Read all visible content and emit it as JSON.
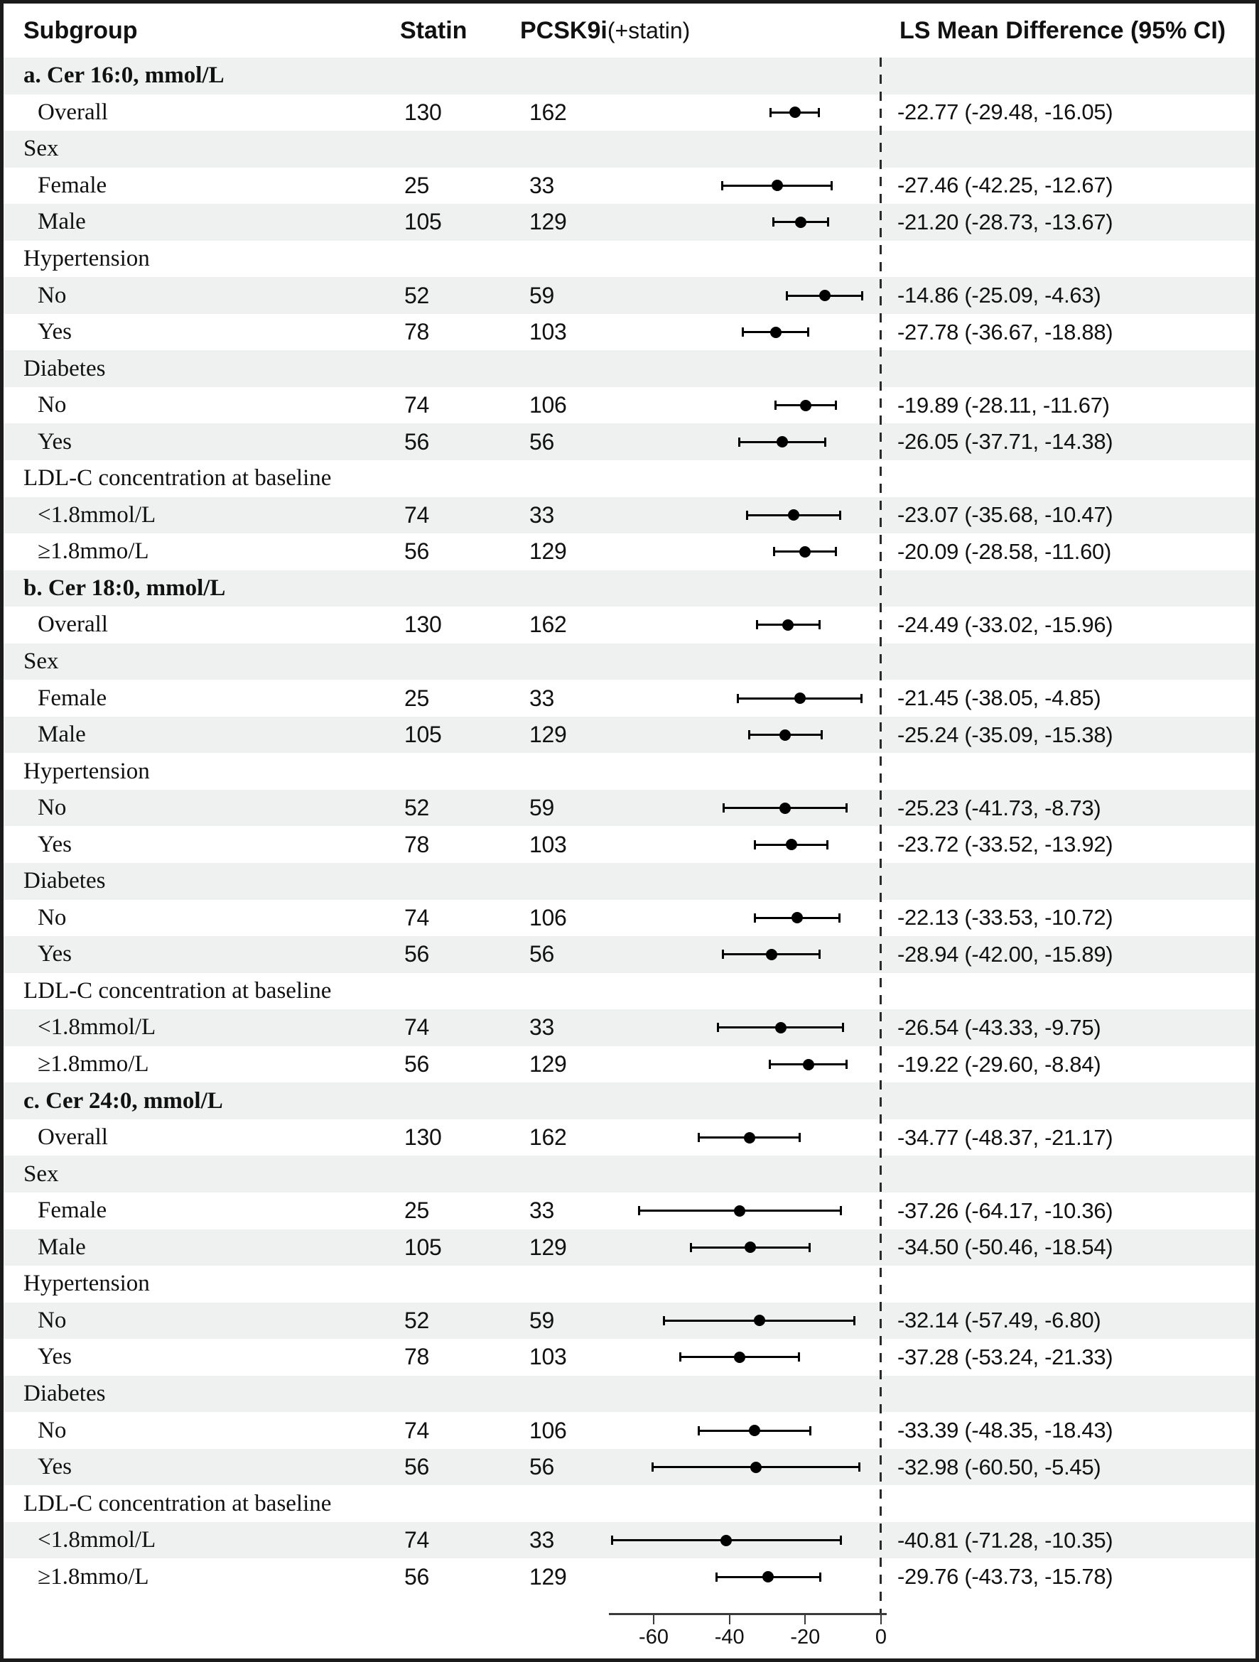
{
  "header": {
    "subgroup": "Subgroup",
    "statin": "Statin",
    "pcsk9i_bold": "PCSK9i",
    "pcsk9i_paren": "(+statin)",
    "ls_mean": "LS Mean Difference (95% CI)"
  },
  "axis": {
    "tick_values": [
      -60,
      -40,
      -20,
      0
    ],
    "tick_labels": [
      "-60",
      "-40",
      "-20",
      "0"
    ],
    "reference_line_value": 0
  },
  "colors": {
    "stripe": "#eef1ef",
    "border": "#1b1b1b",
    "marker": "#000000",
    "text": "#111111"
  },
  "chart_data": {
    "type": "scatter",
    "variant": "forest-plot",
    "title": "",
    "xlabel": "",
    "xlim": [
      -73,
      2
    ],
    "grid": false,
    "reference_line": 0,
    "columns": [
      "Subgroup",
      "Statin",
      "PCSK9i(+statin)",
      "LS Mean Difference (95% CI)"
    ],
    "rows": [
      {
        "kind": "section",
        "label": "a. Cer 16:0, mmol/L"
      },
      {
        "kind": "data",
        "label": "Overall",
        "statin": "130",
        "pcsk9i": "162",
        "est": -22.77,
        "lo": -29.48,
        "hi": -16.05,
        "ci_text": "-22.77 (-29.48, -16.05)"
      },
      {
        "kind": "group",
        "label": "Sex"
      },
      {
        "kind": "data",
        "label": "Female",
        "statin": "25",
        "pcsk9i": "33",
        "est": -27.46,
        "lo": -42.25,
        "hi": -12.67,
        "ci_text": "-27.46 (-42.25, -12.67)"
      },
      {
        "kind": "data",
        "label": "Male",
        "statin": "105",
        "pcsk9i": "129",
        "est": -21.2,
        "lo": -28.73,
        "hi": -13.67,
        "ci_text": "-21.20 (-28.73, -13.67)"
      },
      {
        "kind": "group",
        "label": "Hypertension"
      },
      {
        "kind": "data",
        "label": "No",
        "statin": "52",
        "pcsk9i": "59",
        "est": -14.86,
        "lo": -25.09,
        "hi": -4.63,
        "ci_text": "-14.86 (-25.09, -4.63)"
      },
      {
        "kind": "data",
        "label": "Yes",
        "statin": "78",
        "pcsk9i": "103",
        "est": -27.78,
        "lo": -36.67,
        "hi": -18.88,
        "ci_text": "-27.78 (-36.67, -18.88)"
      },
      {
        "kind": "group",
        "label": "Diabetes"
      },
      {
        "kind": "data",
        "label": "No",
        "statin": "74",
        "pcsk9i": "106",
        "est": -19.89,
        "lo": -28.11,
        "hi": -11.67,
        "ci_text": "-19.89 (-28.11, -11.67)"
      },
      {
        "kind": "data",
        "label": "Yes",
        "statin": "56",
        "pcsk9i": "56",
        "est": -26.05,
        "lo": -37.71,
        "hi": -14.38,
        "ci_text": "-26.05 (-37.71, -14.38)"
      },
      {
        "kind": "group",
        "label": "LDL-C concentration at baseline"
      },
      {
        "kind": "data",
        "label": "<1.8mmol/L",
        "statin": "74",
        "pcsk9i": "33",
        "est": -23.07,
        "lo": -35.68,
        "hi": -10.47,
        "ci_text": "-23.07 (-35.68, -10.47)"
      },
      {
        "kind": "data",
        "label": "≥1.8mmo/L",
        "statin": "56",
        "pcsk9i": "129",
        "est": -20.09,
        "lo": -28.58,
        "hi": -11.6,
        "ci_text": "-20.09 (-28.58, -11.60)"
      },
      {
        "kind": "section",
        "label": "b. Cer 18:0, mmol/L"
      },
      {
        "kind": "data",
        "label": "Overall",
        "statin": "130",
        "pcsk9i": "162",
        "est": -24.49,
        "lo": -33.02,
        "hi": -15.96,
        "ci_text": "-24.49 (-33.02, -15.96)"
      },
      {
        "kind": "group",
        "label": "Sex"
      },
      {
        "kind": "data",
        "label": "Female",
        "statin": "25",
        "pcsk9i": "33",
        "est": -21.45,
        "lo": -38.05,
        "hi": -4.85,
        "ci_text": "-21.45 (-38.05, -4.85)"
      },
      {
        "kind": "data",
        "label": "Male",
        "statin": "105",
        "pcsk9i": "129",
        "est": -25.24,
        "lo": -35.09,
        "hi": -15.38,
        "ci_text": "-25.24 (-35.09, -15.38)"
      },
      {
        "kind": "group",
        "label": "Hypertension"
      },
      {
        "kind": "data",
        "label": "No",
        "statin": "52",
        "pcsk9i": "59",
        "est": -25.23,
        "lo": -41.73,
        "hi": -8.73,
        "ci_text": "-25.23 (-41.73, -8.73)"
      },
      {
        "kind": "data",
        "label": "Yes",
        "statin": "78",
        "pcsk9i": "103",
        "est": -23.72,
        "lo": -33.52,
        "hi": -13.92,
        "ci_text": "-23.72 (-33.52, -13.92)"
      },
      {
        "kind": "group",
        "label": "Diabetes"
      },
      {
        "kind": "data",
        "label": "No",
        "statin": "74",
        "pcsk9i": "106",
        "est": -22.13,
        "lo": -33.53,
        "hi": -10.72,
        "ci_text": "-22.13 (-33.53, -10.72)"
      },
      {
        "kind": "data",
        "label": "Yes",
        "statin": "56",
        "pcsk9i": "56",
        "est": -28.94,
        "lo": -42.0,
        "hi": -15.89,
        "ci_text": "-28.94 (-42.00, -15.89)"
      },
      {
        "kind": "group",
        "label": "LDL-C concentration at baseline"
      },
      {
        "kind": "data",
        "label": "<1.8mmol/L",
        "statin": "74",
        "pcsk9i": "33",
        "est": -26.54,
        "lo": -43.33,
        "hi": -9.75,
        "ci_text": "-26.54 (-43.33, -9.75)"
      },
      {
        "kind": "data",
        "label": "≥1.8mmo/L",
        "statin": "56",
        "pcsk9i": "129",
        "est": -19.22,
        "lo": -29.6,
        "hi": -8.84,
        "ci_text": "-19.22 (-29.60, -8.84)"
      },
      {
        "kind": "section",
        "label": "c. Cer 24:0, mmol/L"
      },
      {
        "kind": "data",
        "label": "Overall",
        "statin": "130",
        "pcsk9i": "162",
        "est": -34.77,
        "lo": -48.37,
        "hi": -21.17,
        "ci_text": "-34.77 (-48.37, -21.17)"
      },
      {
        "kind": "group",
        "label": "Sex"
      },
      {
        "kind": "data",
        "label": "Female",
        "statin": "25",
        "pcsk9i": "33",
        "est": -37.26,
        "lo": -64.17,
        "hi": -10.36,
        "ci_text": "-37.26 (-64.17, -10.36)"
      },
      {
        "kind": "data",
        "label": "Male",
        "statin": "105",
        "pcsk9i": "129",
        "est": -34.5,
        "lo": -50.46,
        "hi": -18.54,
        "ci_text": "-34.50 (-50.46, -18.54)"
      },
      {
        "kind": "group",
        "label": "Hypertension"
      },
      {
        "kind": "data",
        "label": "No",
        "statin": "52",
        "pcsk9i": "59",
        "est": -32.14,
        "lo": -57.49,
        "hi": -6.8,
        "ci_text": "-32.14 (-57.49, -6.80)"
      },
      {
        "kind": "data",
        "label": "Yes",
        "statin": "78",
        "pcsk9i": "103",
        "est": -37.28,
        "lo": -53.24,
        "hi": -21.33,
        "ci_text": "-37.28 (-53.24, -21.33)"
      },
      {
        "kind": "group",
        "label": "Diabetes"
      },
      {
        "kind": "data",
        "label": "No",
        "statin": "74",
        "pcsk9i": "106",
        "est": -33.39,
        "lo": -48.35,
        "hi": -18.43,
        "ci_text": "-33.39 (-48.35, -18.43)"
      },
      {
        "kind": "data",
        "label": "Yes",
        "statin": "56",
        "pcsk9i": "56",
        "est": -32.98,
        "lo": -60.5,
        "hi": -5.45,
        "ci_text": "-32.98 (-60.50, -5.45)"
      },
      {
        "kind": "group",
        "label": "LDL-C concentration at baseline"
      },
      {
        "kind": "data",
        "label": "<1.8mmol/L",
        "statin": "74",
        "pcsk9i": "33",
        "est": -40.81,
        "lo": -71.28,
        "hi": -10.35,
        "ci_text": "-40.81 (-71.28, -10.35)"
      },
      {
        "kind": "data",
        "label": "≥1.8mmo/L",
        "statin": "56",
        "pcsk9i": "129",
        "est": -29.76,
        "lo": -43.73,
        "hi": -15.78,
        "ci_text": "-29.76 (-43.73, -15.78)"
      }
    ]
  }
}
